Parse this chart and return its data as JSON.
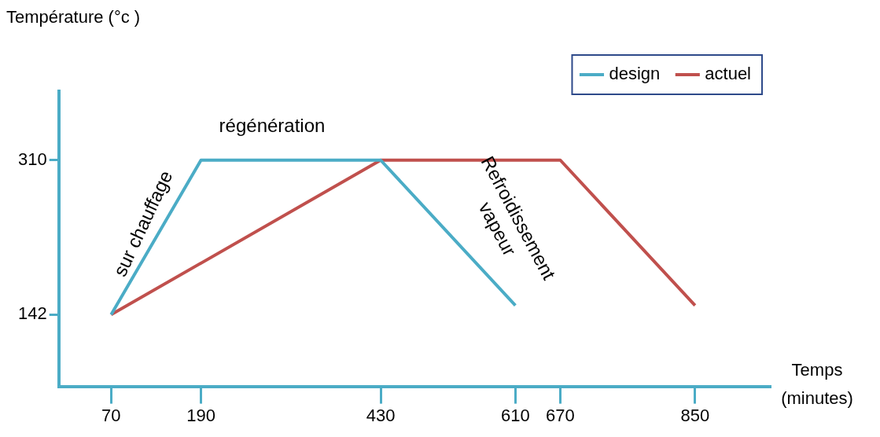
{
  "chart_data": {
    "type": "line",
    "xlabel": "Temps (minutes)",
    "ylabel": "Température (°c )",
    "series": [
      {
        "name": "design",
        "color": "#4bacc6",
        "x": [
          70,
          190,
          430,
          610
        ],
        "values": [
          142,
          310,
          310,
          152
        ]
      },
      {
        "name": "actuel",
        "color": "#c0504d",
        "x": [
          70,
          430,
          670,
          850
        ],
        "values": [
          142,
          310,
          310,
          152
        ]
      }
    ],
    "xlim": [
      0,
      950
    ],
    "xticks": [
      70,
      190,
      430,
      610,
      670,
      850
    ],
    "ylim": [
      64,
      385
    ],
    "yticks": [
      142,
      310
    ],
    "grid": false,
    "legend": "top right",
    "marker": "none",
    "line_style": "solid",
    "annotations": [
      "sur chauffage",
      "régénération",
      "Refroidissement vapeur"
    ]
  }
}
